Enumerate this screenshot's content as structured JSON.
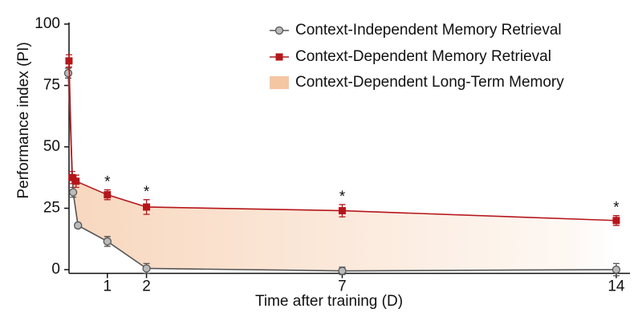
{
  "chart_data": {
    "type": "line",
    "xlabel": "Time after training (D)",
    "ylabel": "Performance index (PI)",
    "xlim": [
      0,
      14.35
    ],
    "xticks": [
      1,
      2,
      7,
      14
    ],
    "ylim": [
      -1.5,
      100
    ],
    "yticks": [
      0,
      25,
      50,
      75,
      100
    ],
    "legend": "upper right",
    "series": [
      {
        "name": "Context-Independent Memory Retrieval",
        "color": "#555555",
        "marker": "circle",
        "x": [
          0,
          0.125,
          0.25,
          1,
          2,
          7,
          14
        ],
        "values": [
          80,
          31.5,
          18,
          11.5,
          0.5,
          -0.5,
          0
        ],
        "errors": [
          2,
          2,
          1,
          2,
          2,
          1.5,
          2.5
        ]
      },
      {
        "name": "Context-Dependent Memory Retrieval",
        "color": "#b5161b",
        "marker": "square",
        "x": [
          0.02,
          0.1,
          0.2,
          1,
          2,
          7,
          14
        ],
        "values": [
          85,
          37.5,
          36,
          30.5,
          25.5,
          24,
          20
        ],
        "errors": [
          2.5,
          2.5,
          2.5,
          2,
          3,
          2.5,
          2
        ]
      }
    ],
    "shaded": {
      "name": "Context-Dependent Long-Term Memory",
      "color": "#f5c6a2"
    },
    "annotations": [
      {
        "text": "*",
        "x": 1
      },
      {
        "text": "*",
        "x": 2
      },
      {
        "text": "*",
        "x": 7
      },
      {
        "text": "*",
        "x": 14
      }
    ]
  }
}
